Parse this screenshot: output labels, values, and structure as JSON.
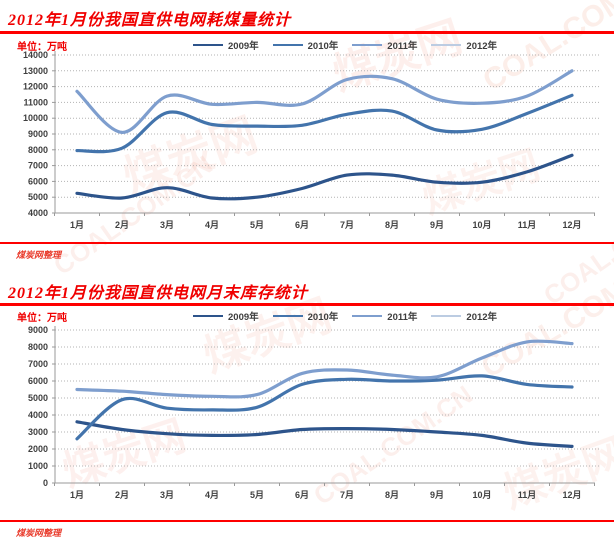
{
  "watermark": {
    "site": "COAL.COM.CN",
    "logo": "煤炭网"
  },
  "charts": [
    {
      "title": "2012年1月份我国直供电网耗煤量统计",
      "unit_label": "单位：万吨",
      "source_label": "煤炭网整理",
      "chart_data": {
        "type": "line",
        "categories": [
          "1月",
          "2月",
          "3月",
          "4月",
          "5月",
          "6月",
          "7月",
          "8月",
          "9月",
          "10月",
          "11月",
          "12月"
        ],
        "series": [
          {
            "name": "2009年",
            "color": "#2d548b",
            "values": [
              5250,
              4950,
              5600,
              4950,
              5000,
              5550,
              6400,
              6400,
              5950,
              5950,
              6600,
              7650
            ]
          },
          {
            "name": "2010年",
            "color": "#4374ac",
            "values": [
              7950,
              8100,
              10350,
              9600,
              9500,
              9550,
              10250,
              10450,
              9250,
              9300,
              10300,
              11450
            ]
          },
          {
            "name": "2011年",
            "color": "#7e9ece",
            "values": [
              11700,
              9100,
              11400,
              10880,
              11000,
              10900,
              12450,
              12500,
              11200,
              10950,
              11400,
              13000
            ]
          },
          {
            "name": "2012年",
            "color": "#bccce2",
            "values": []
          }
        ],
        "ylim": [
          4000,
          14000
        ],
        "ytick_step": 1000,
        "grid": true,
        "legend_position": "top"
      }
    },
    {
      "title": "2012年1月份我国直供电网月末库存统计",
      "unit_label": "单位：万吨",
      "source_label": "煤炭网整理",
      "chart_data": {
        "type": "line",
        "categories": [
          "1月",
          "2月",
          "3月",
          "4月",
          "5月",
          "6月",
          "7月",
          "8月",
          "9月",
          "10月",
          "11月",
          "12月"
        ],
        "series": [
          {
            "name": "2009年",
            "color": "#2d548b",
            "values": [
              3600,
              3150,
              2900,
              2800,
              2850,
              3150,
              3200,
              3150,
              3000,
              2800,
              2350,
              2150
            ]
          },
          {
            "name": "2010年",
            "color": "#4374ac",
            "values": [
              2600,
              4900,
              4400,
              4300,
              4450,
              5800,
              6100,
              6000,
              6050,
              6300,
              5800,
              5650
            ]
          },
          {
            "name": "2011年",
            "color": "#7e9ece",
            "values": [
              5500,
              5400,
              5200,
              5100,
              5200,
              6450,
              6650,
              6350,
              6250,
              7350,
              8300,
              8200
            ]
          },
          {
            "name": "2012年",
            "color": "#bccce2",
            "values": []
          }
        ],
        "ylim": [
          0,
          9000
        ],
        "ytick_step": 1000,
        "grid": true,
        "legend_position": "top"
      }
    }
  ]
}
